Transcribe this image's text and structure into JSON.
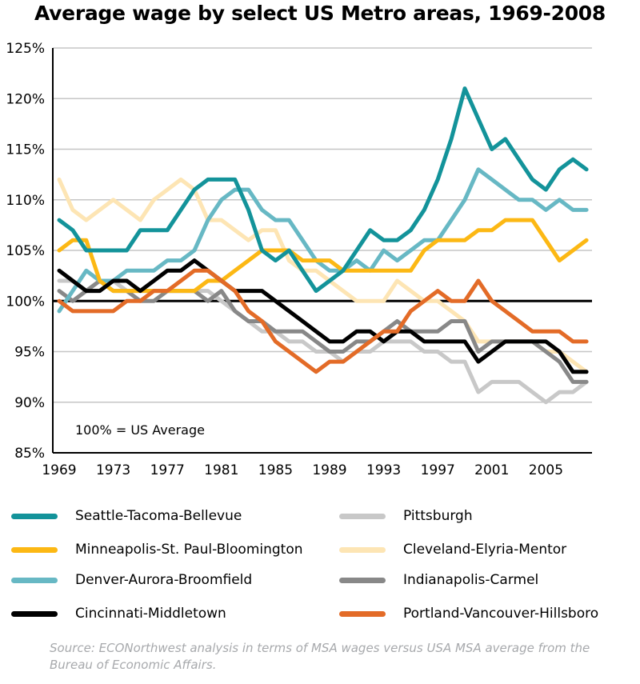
{
  "chart_data": {
    "type": "line",
    "title": "Average wage by select US Metro areas, 1969-2008",
    "xlabel": "",
    "ylabel": "",
    "annotation": "100% = US Average",
    "reference_line": 100,
    "xlim": [
      1969,
      2008
    ],
    "ylim": [
      85,
      125
    ],
    "x_ticks": [
      "1969",
      "1973",
      "1977",
      "1981",
      "1985",
      "1989",
      "1993",
      "1997",
      "2001",
      "2005"
    ],
    "y_ticks": [
      "85%",
      "90%",
      "95%",
      "100%",
      "105%",
      "110%",
      "115%",
      "120%",
      "125%"
    ],
    "grid": "horizontal",
    "x": [
      1969,
      1970,
      1971,
      1972,
      1973,
      1974,
      1975,
      1976,
      1977,
      1978,
      1979,
      1980,
      1981,
      1982,
      1983,
      1984,
      1985,
      1986,
      1987,
      1988,
      1989,
      1990,
      1991,
      1992,
      1993,
      1994,
      1995,
      1996,
      1997,
      1998,
      1999,
      2000,
      2001,
      2002,
      2003,
      2004,
      2005,
      2006,
      2007,
      2008
    ],
    "series": [
      {
        "name": "Seattle-Tacoma-Bellevue",
        "color": "#13939a",
        "values": [
          108,
          107,
          105,
          105,
          105,
          105,
          107,
          107,
          107,
          109,
          111,
          112,
          112,
          112,
          109,
          105,
          104,
          105,
          103,
          101,
          102,
          103,
          105,
          107,
          106,
          106,
          107,
          109,
          112,
          116,
          121,
          118,
          115,
          116,
          114,
          112,
          111,
          113,
          114,
          113
        ]
      },
      {
        "name": "Pittsburgh",
        "color": "#c8c8c8",
        "values": [
          102,
          102,
          101,
          101,
          102,
          101,
          101,
          101,
          101,
          101,
          101,
          101,
          100,
          99,
          98,
          97,
          97,
          96,
          96,
          95,
          95,
          94,
          95,
          95,
          96,
          96,
          96,
          95,
          95,
          94,
          94,
          91,
          92,
          92,
          92,
          91,
          90,
          91,
          91,
          92
        ]
      },
      {
        "name": "Minneapolis-St. Paul-Bloomington",
        "color": "#fcb814",
        "values": [
          105,
          106,
          106,
          102,
          101,
          101,
          101,
          101,
          101,
          101,
          101,
          102,
          102,
          103,
          104,
          105,
          105,
          105,
          104,
          104,
          104,
          103,
          103,
          103,
          103,
          103,
          103,
          105,
          106,
          106,
          106,
          107,
          107,
          108,
          108,
          108,
          106,
          104,
          105,
          106
        ]
      },
      {
        "name": "Cleveland-Elyria-Mentor",
        "color": "#fde5b4",
        "values": [
          112,
          109,
          108,
          109,
          110,
          109,
          108,
          110,
          111,
          112,
          111,
          108,
          108,
          107,
          106,
          107,
          107,
          104,
          103,
          103,
          102,
          101,
          100,
          100,
          100,
          102,
          101,
          100,
          100,
          99,
          98,
          96,
          96,
          96,
          96,
          96,
          95,
          95,
          94,
          93
        ]
      },
      {
        "name": "Denver-Aurora-Broomfield",
        "color": "#67b8c4",
        "values": [
          99,
          101,
          103,
          102,
          102,
          103,
          103,
          103,
          104,
          104,
          105,
          108,
          110,
          111,
          111,
          109,
          108,
          108,
          106,
          104,
          103,
          103,
          104,
          103,
          105,
          104,
          105,
          106,
          106,
          108,
          110,
          113,
          112,
          111,
          110,
          110,
          109,
          110,
          109,
          109
        ]
      },
      {
        "name": "Indianapolis-Carmel",
        "color": "#888888",
        "values": [
          101,
          100,
          101,
          102,
          101,
          101,
          100,
          100,
          101,
          101,
          101,
          100,
          101,
          99,
          98,
          98,
          97,
          97,
          97,
          96,
          95,
          95,
          96,
          96,
          97,
          98,
          97,
          97,
          97,
          98,
          98,
          95,
          96,
          96,
          96,
          96,
          95,
          94,
          92,
          92
        ]
      },
      {
        "name": "Cincinnati-Middletown",
        "color": "#000000",
        "values": [
          103,
          102,
          101,
          101,
          102,
          102,
          101,
          102,
          103,
          103,
          104,
          103,
          102,
          101,
          101,
          101,
          100,
          99,
          98,
          97,
          96,
          96,
          97,
          97,
          96,
          97,
          97,
          96,
          96,
          96,
          96,
          94,
          95,
          96,
          96,
          96,
          96,
          95,
          93,
          93
        ]
      },
      {
        "name": "Portland-Vancouver-Hillsboro",
        "color": "#e36b27",
        "values": [
          100,
          99,
          99,
          99,
          99,
          100,
          100,
          101,
          101,
          102,
          103,
          103,
          102,
          101,
          99,
          98,
          96,
          95,
          94,
          93,
          94,
          94,
          95,
          96,
          97,
          97,
          99,
          100,
          101,
          100,
          100,
          102,
          100,
          99,
          98,
          97,
          97,
          97,
          96,
          96
        ]
      }
    ]
  },
  "source_note": "Source: ECONorthwest analysis in terms of MSA wages versus USA MSA average from the Bureau of Economic Affairs."
}
